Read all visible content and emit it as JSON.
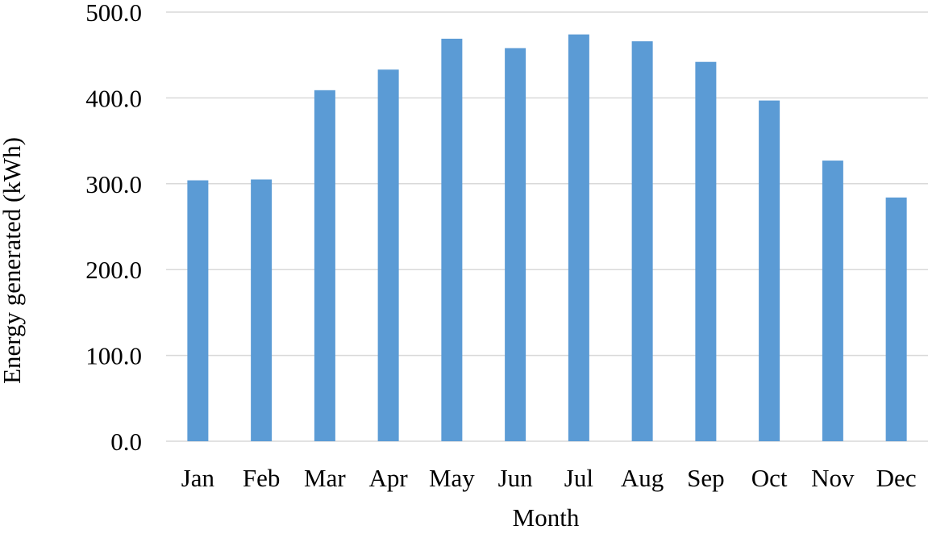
{
  "chart_data": {
    "type": "bar",
    "title": "",
    "xlabel": "Month",
    "ylabel": "Energy generated (kWh)",
    "categories": [
      "Jan",
      "Feb",
      "Mar",
      "Apr",
      "May",
      "Jun",
      "Jul",
      "Aug",
      "Sep",
      "Oct",
      "Nov",
      "Dec"
    ],
    "values": [
      304,
      305,
      409,
      433,
      469,
      458,
      474,
      466,
      442,
      397,
      327,
      284
    ],
    "ylim": [
      0,
      500
    ],
    "yticks": [
      "0.0",
      "100.0",
      "200.0",
      "300.0",
      "400.0",
      "500.0"
    ],
    "grid": true,
    "legend": "none",
    "bar_color": "#5B9BD5",
    "grid_color": "#D9D9D9"
  }
}
